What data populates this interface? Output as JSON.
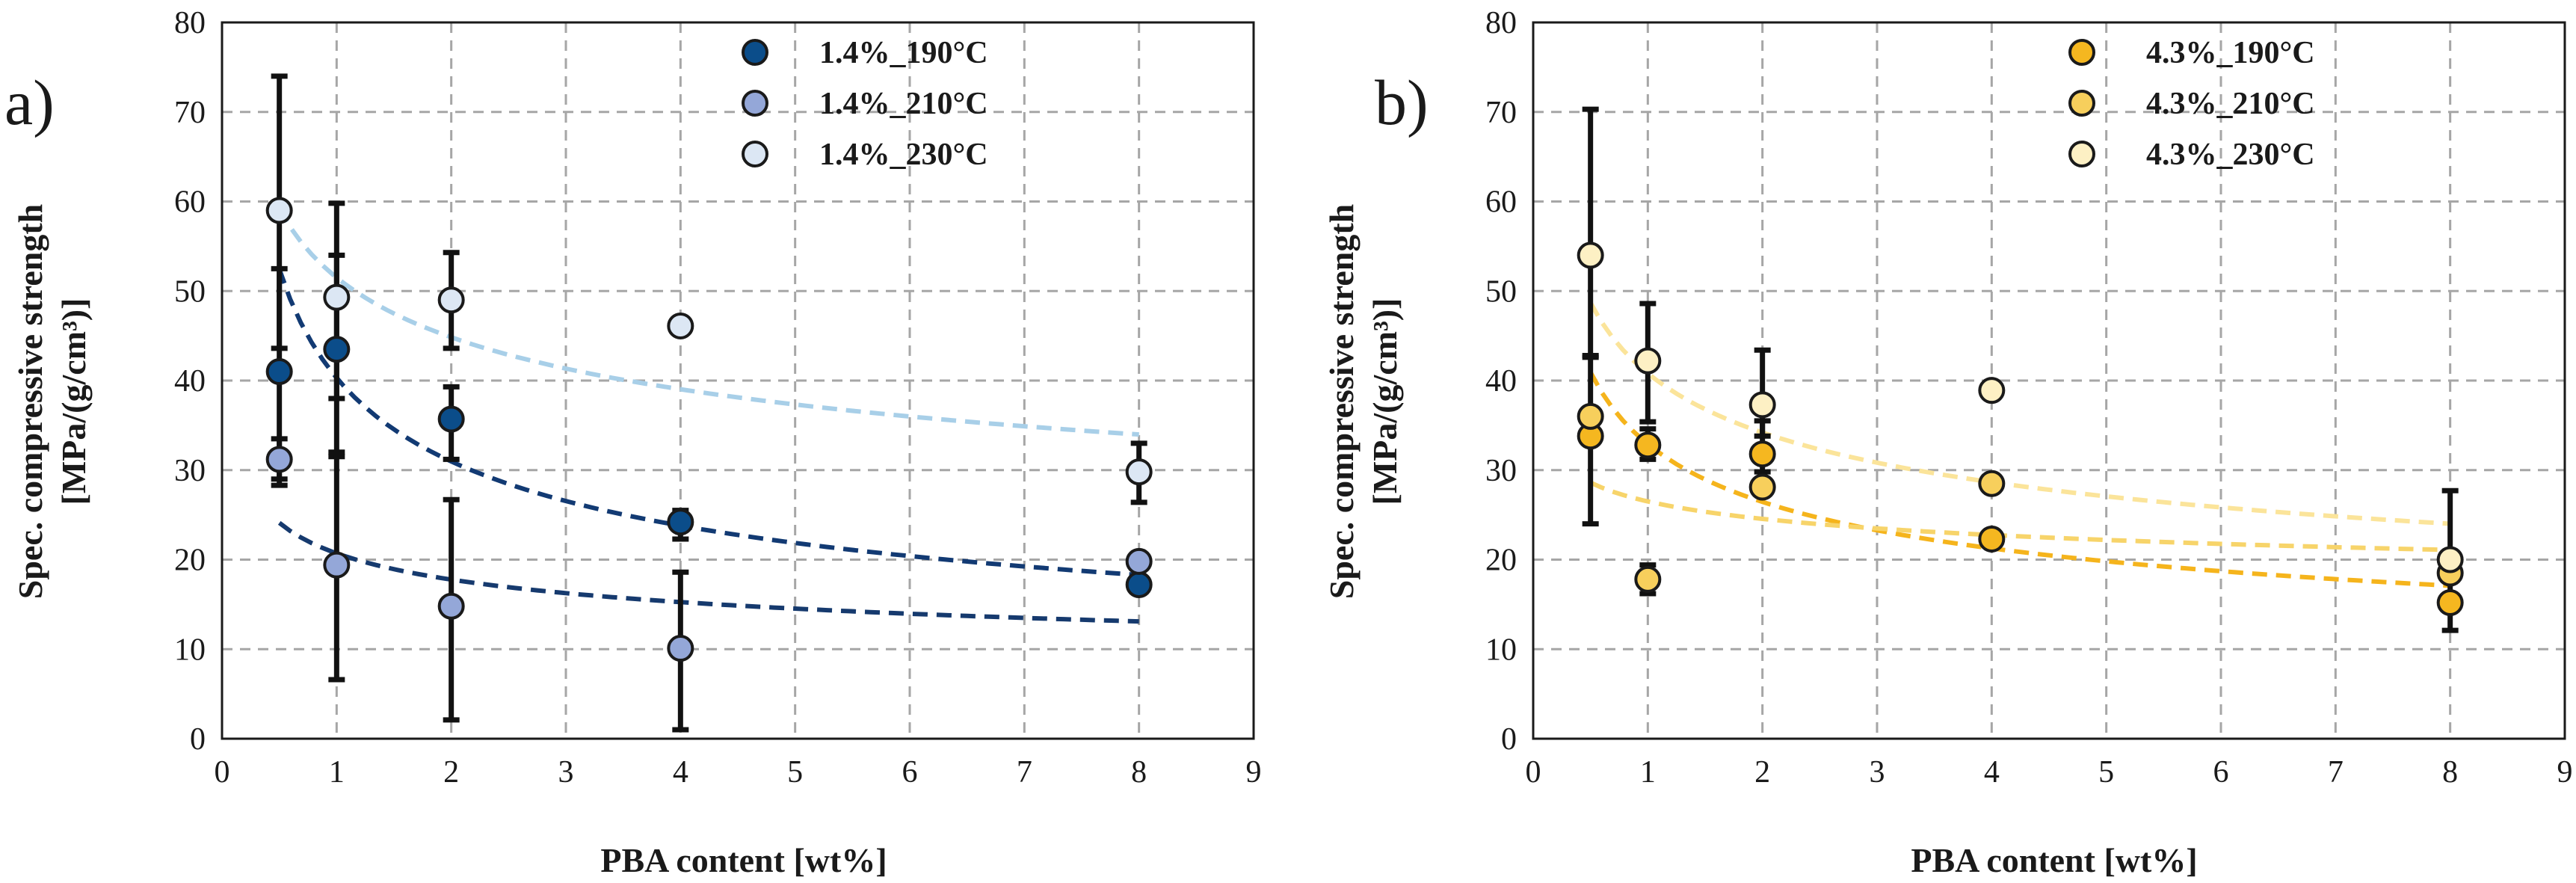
{
  "chart_data": [
    {
      "type": "scatter",
      "panel_label": "a)",
      "xlabel": "PBA content [wt%]",
      "ylabel_line1": "Spec. compressive strength",
      "ylabel_line2": "[MPa/(g/cm³)]",
      "xlim": [
        0,
        9
      ],
      "ylim": [
        0,
        80
      ],
      "xticks": [
        "0",
        "1",
        "2",
        "3",
        "4",
        "5",
        "6",
        "7",
        "8",
        "9"
      ],
      "yticks": [
        "0",
        "10",
        "20",
        "30",
        "40",
        "50",
        "60",
        "70",
        "80"
      ],
      "grid": true,
      "legend_position": "top-right",
      "series": [
        {
          "name": "1.4%_190°C",
          "color": "#0b4d8a",
          "trend_color": "#123a73",
          "x": [
            0.5,
            1,
            2,
            4,
            8
          ],
          "y": [
            41,
            43.5,
            35.7,
            24.2,
            17.2
          ],
          "err_low": [
            28.3,
            31.5,
            31.2,
            22.3,
            17.2
          ],
          "err_high": [
            52.5,
            54,
            39.3,
            25.5,
            17.2
          ],
          "trend": {
            "type": "power",
            "a": 40.3,
            "b": -0.38
          }
        },
        {
          "name": "1.4%_210°C",
          "color": "#94a7d8",
          "trend_color": "#163a6e",
          "x": [
            0.5,
            1,
            2,
            4,
            8
          ],
          "y": [
            31.2,
            19.4,
            14.8,
            10.1,
            19.8
          ],
          "err_low": [
            29,
            6.6,
            2.1,
            1,
            19.8
          ],
          "err_high": [
            33.5,
            32,
            26.7,
            18.6,
            19.8
          ],
          "trend": {
            "type": "power",
            "a": 20.7,
            "b": -0.22
          }
        },
        {
          "name": "1.4%_230°C",
          "color": "#dce7f4",
          "trend_color": "#a8cfe8",
          "x": [
            0.5,
            1,
            2,
            4,
            8
          ],
          "y": [
            59,
            49.3,
            49,
            46.1,
            29.8
          ],
          "err_low": [
            43.6,
            38,
            43.6,
            46.1,
            26.4
          ],
          "err_high": [
            74,
            59.8,
            54.3,
            46.1,
            33
          ],
          "trend": {
            "type": "power",
            "a": 51.5,
            "b": -0.2
          }
        }
      ]
    },
    {
      "type": "scatter",
      "panel_label": "b)",
      "xlabel": "PBA content [wt%]",
      "ylabel_line1": "Spec. compressive strength",
      "ylabel_line2": "[MPa/(g/cm³)]",
      "xlim": [
        0,
        9
      ],
      "ylim": [
        0,
        80
      ],
      "xticks": [
        "0",
        "1",
        "2",
        "3",
        "4",
        "5",
        "6",
        "7",
        "8",
        "9"
      ],
      "yticks": [
        "0",
        "10",
        "20",
        "30",
        "40",
        "50",
        "60",
        "70",
        "80"
      ],
      "grid": true,
      "legend_position": "top-right",
      "series": [
        {
          "name": "4.3%_190°C",
          "color": "#f5b720",
          "trend_color": "#f5b41c",
          "x": [
            0.5,
            1,
            2,
            4,
            8
          ],
          "y": [
            33.8,
            32.8,
            31.8,
            22.3,
            15.2
          ],
          "err_low": [
            24,
            31.2,
            29.8,
            21.5,
            12.1
          ],
          "err_high": [
            42.6,
            34.6,
            35.5,
            23.2,
            27.7
          ],
          "trend": {
            "type": "power",
            "a": 32.9,
            "b": -0.315
          }
        },
        {
          "name": "4.3%_210°C",
          "color": "#f7cf5c",
          "trend_color": "#f7d46a",
          "x": [
            0.5,
            1,
            2,
            4,
            8
          ],
          "y": [
            36,
            17.8,
            28.1,
            28.5,
            18.5
          ],
          "err_low": [
            36,
            16.2,
            28.1,
            28.5,
            18.5
          ],
          "err_high": [
            36,
            19.4,
            28.1,
            28.5,
            18.5
          ],
          "trend": {
            "type": "power",
            "a": 26.5,
            "b": -0.11
          }
        },
        {
          "name": "4.3%_230°C",
          "color": "#fdf0c4",
          "trend_color": "#fbe49a",
          "x": [
            0.5,
            1,
            2,
            4,
            8
          ],
          "y": [
            54,
            42.2,
            37.3,
            38.9,
            20
          ],
          "err_low": [
            42.8,
            35.4,
            33.8,
            38.9,
            20
          ],
          "err_high": [
            70.3,
            48.6,
            43.4,
            38.9,
            20
          ],
          "trend": {
            "type": "power",
            "a": 40.8,
            "b": -0.255
          }
        }
      ]
    }
  ]
}
